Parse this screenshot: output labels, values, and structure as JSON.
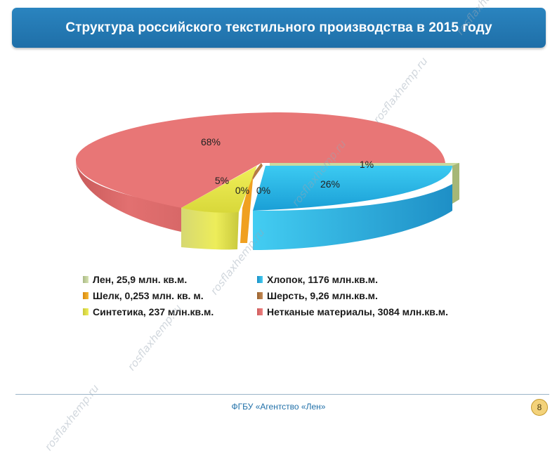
{
  "header": {
    "title": "Структура российского текстильного производства в 2015 году"
  },
  "chart_data": {
    "type": "pie",
    "title": "Структура российского текстильного производства в 2015 году",
    "three_d": true,
    "unit": "млн. кв. м.",
    "slices": [
      {
        "name": "Лен",
        "value": 25.9,
        "percent_label": "1%",
        "color": "#c9d9a0"
      },
      {
        "name": "Хлопок",
        "value": 1176,
        "percent_label": "26%",
        "color": "#2bb3e3"
      },
      {
        "name": "Шерсть",
        "value": 9.26,
        "percent_label": "0%",
        "color": "#b67a45"
      },
      {
        "name": "Шелк",
        "value": 0.253,
        "percent_label": "0%",
        "color": "#f0a020"
      },
      {
        "name": "Синтетика",
        "value": 237,
        "percent_label": "5%",
        "color": "#e9e84a"
      },
      {
        "name": "Нетканые материалы",
        "value": 3084,
        "percent_label": "68%",
        "color": "#e87272"
      }
    ],
    "legend": [
      {
        "text": "Лен, 25,9 млн. кв.м.",
        "color": "#c9d9a0"
      },
      {
        "text": "Хлопок, 1176 млн.кв.м.",
        "color": "#2bb3e3"
      },
      {
        "text": "Шелк, 0,253 млн. кв. м.",
        "color": "#f0a020"
      },
      {
        "text": "Шерсть, 9,26 млн.кв.м.",
        "color": "#b67a45"
      },
      {
        "text": "Синтетика, 237 млн.кв.м.",
        "color": "#e9e84a"
      },
      {
        "text": "Нетканые материалы, 3084 млн.кв.м.",
        "color": "#e87272"
      }
    ],
    "legend_position": "bottom"
  },
  "footer": {
    "text": "ФГБУ «Агентство «Лен»",
    "page": "8"
  },
  "watermark": "rosflaxhemp.ru"
}
